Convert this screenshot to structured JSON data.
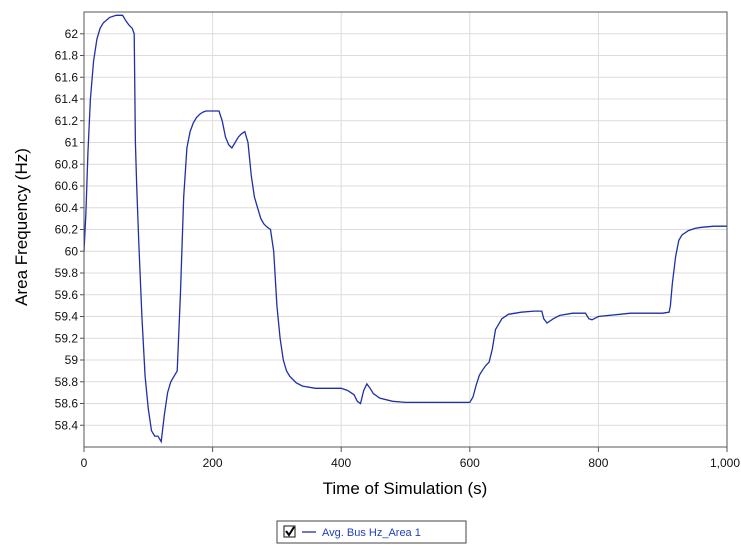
{
  "chart_data": {
    "type": "line",
    "title": "",
    "xlabel": "Time of Simulation (s)",
    "ylabel": "Area Frequency (Hz)",
    "xlim": [
      0,
      1000
    ],
    "ylim": [
      58.2,
      62.2
    ],
    "x_ticks": [
      0,
      200,
      400,
      600,
      800,
      1000
    ],
    "x_tick_labels": [
      "0",
      "200",
      "400",
      "600",
      "800",
      "1,000"
    ],
    "y_ticks": [
      58.4,
      58.6,
      58.8,
      59,
      59.2,
      59.4,
      59.6,
      59.8,
      60,
      60.2,
      60.4,
      60.6,
      60.8,
      61,
      61.2,
      61.4,
      61.6,
      61.8,
      62
    ],
    "y_tick_labels": [
      "58.4",
      "58.6",
      "58.8",
      "59",
      "59.2",
      "59.4",
      "59.6",
      "59.8",
      "60",
      "60.2",
      "60.4",
      "60.6",
      "60.8",
      "61",
      "61.2",
      "61.4",
      "61.6",
      "61.8",
      "62"
    ],
    "grid": true,
    "legend_position": "bottom-center",
    "series": [
      {
        "name": "Avg. Bus Hz_Area 1",
        "color": "#1f2fa8",
        "checked": true,
        "x": [
          0,
          3,
          6,
          10,
          15,
          20,
          25,
          30,
          40,
          50,
          60,
          65,
          70,
          75,
          78,
          80,
          82,
          85,
          90,
          95,
          100,
          105,
          110,
          115,
          120,
          125,
          130,
          135,
          140,
          145,
          150,
          155,
          160,
          165,
          170,
          175,
          180,
          185,
          190,
          195,
          200,
          205,
          210,
          215,
          220,
          225,
          230,
          235,
          240,
          245,
          250,
          255,
          260,
          265,
          270,
          275,
          280,
          285,
          290,
          295,
          300,
          305,
          310,
          315,
          320,
          330,
          340,
          360,
          380,
          400,
          405,
          410,
          415,
          420,
          425,
          430,
          435,
          440,
          445,
          450,
          460,
          480,
          500,
          550,
          600,
          605,
          610,
          615,
          620,
          625,
          630,
          635,
          640,
          650,
          660,
          680,
          700,
          710,
          712,
          715,
          720,
          730,
          740,
          760,
          780,
          785,
          790,
          800,
          850,
          900,
          910,
          912,
          915,
          920,
          925,
          930,
          940,
          950,
          960,
          980,
          1000
        ],
        "y": [
          60.0,
          60.35,
          60.9,
          61.4,
          61.75,
          61.95,
          62.05,
          62.1,
          62.15,
          62.17,
          62.17,
          62.12,
          62.08,
          62.05,
          62.0,
          61.0,
          60.6,
          60.1,
          59.4,
          58.85,
          58.55,
          58.35,
          58.3,
          58.3,
          58.25,
          58.5,
          58.7,
          58.8,
          58.85,
          58.9,
          59.6,
          60.5,
          60.95,
          61.1,
          61.18,
          61.23,
          61.26,
          61.28,
          61.29,
          61.29,
          61.29,
          61.29,
          61.29,
          61.2,
          61.05,
          60.98,
          60.95,
          61.0,
          61.05,
          61.08,
          61.1,
          61.0,
          60.7,
          60.5,
          60.4,
          60.3,
          60.25,
          60.22,
          60.2,
          60.0,
          59.5,
          59.2,
          59.0,
          58.9,
          58.85,
          58.79,
          58.76,
          58.74,
          58.74,
          58.74,
          58.73,
          58.72,
          58.7,
          58.68,
          58.62,
          58.6,
          58.72,
          58.78,
          58.74,
          58.69,
          58.65,
          58.62,
          58.61,
          58.61,
          58.61,
          58.66,
          58.77,
          58.86,
          58.91,
          58.95,
          58.98,
          59.1,
          59.28,
          59.38,
          59.42,
          59.44,
          59.45,
          59.45,
          59.45,
          59.38,
          59.34,
          59.38,
          59.41,
          59.43,
          59.43,
          59.38,
          59.37,
          59.4,
          59.43,
          59.43,
          59.44,
          59.5,
          59.7,
          59.95,
          60.1,
          60.15,
          60.19,
          60.21,
          60.22,
          60.23,
          60.23
        ]
      }
    ]
  }
}
